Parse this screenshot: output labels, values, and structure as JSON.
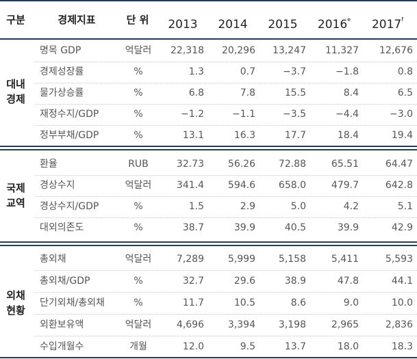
{
  "header": {
    "category": "구분",
    "indicator": "경제지표",
    "unit": "단 위",
    "years": [
      {
        "year": "2013",
        "mark": ""
      },
      {
        "year": "2014",
        "mark": ""
      },
      {
        "year": "2015",
        "mark": ""
      },
      {
        "year": "2016",
        "mark": "e"
      },
      {
        "year": "2017",
        "mark": "f"
      }
    ]
  },
  "groups": [
    {
      "label_line1": "대내",
      "label_line2": "경제",
      "rows": [
        {
          "name": "명목 GDP",
          "unit": "억달러",
          "values": [
            "22,318",
            "20,296",
            "13,247",
            "11,327",
            "12,676"
          ]
        },
        {
          "name": "경제성장률",
          "unit": "%",
          "values": [
            "1.3",
            "0.7",
            "−3.7",
            "−1.8",
            "0.8"
          ]
        },
        {
          "name": "물가상승률",
          "unit": "%",
          "values": [
            "6.8",
            "7.8",
            "15.5",
            "8.4",
            "6.5"
          ]
        },
        {
          "name": "재정수지/GDP",
          "unit": "%",
          "values": [
            "−1.2",
            "−1.1",
            "−3.5",
            "−4.4",
            "−3.0"
          ]
        },
        {
          "name": "정부부채/GDP",
          "unit": "%",
          "values": [
            "13.1",
            "16.3",
            "17.7",
            "18.4",
            "19.4"
          ]
        }
      ]
    },
    {
      "label_line1": "국제",
      "label_line2": "교역",
      "rows": [
        {
          "name": "환율",
          "unit": "RUB",
          "values": [
            "32.73",
            "56.26",
            "72.88",
            "65.51",
            "64.47"
          ]
        },
        {
          "name": "경상수지",
          "unit": "억달러",
          "values": [
            "341.4",
            "594.6",
            "658.0",
            "479.7",
            "642.8"
          ]
        },
        {
          "name": "경상수지/GDP",
          "unit": "%",
          "values": [
            "1.5",
            "2.9",
            "5.0",
            "4.2",
            "5.1"
          ]
        },
        {
          "name": "대외의존도",
          "unit": "%",
          "values": [
            "38.7",
            "39.9",
            "40.5",
            "39.9",
            "42.9"
          ]
        }
      ]
    },
    {
      "label_line1": "외채",
      "label_line2": "현황",
      "rows": [
        {
          "name": "총외채",
          "unit": "억달러",
          "values": [
            "7,289",
            "5,999",
            "5,158",
            "5,411",
            "5,593"
          ]
        },
        {
          "name": "총외채/GDP",
          "unit": "%",
          "values": [
            "32.7",
            "29.6",
            "38.9",
            "47.8",
            "44.1"
          ]
        },
        {
          "name": "단기외채/총외채",
          "unit": "%",
          "values": [
            "11.7",
            "10.5",
            "8.6",
            "9.0",
            "10.0"
          ]
        },
        {
          "name": "외환보유액",
          "unit": "억달러",
          "values": [
            "4,696",
            "3,394",
            "3,198",
            "2,965",
            "2,836"
          ]
        },
        {
          "name": "수입개월수",
          "unit": "개월",
          "values": [
            "12.0",
            "9.5",
            "13.7",
            "18.0",
            "18.3"
          ]
        }
      ]
    }
  ]
}
